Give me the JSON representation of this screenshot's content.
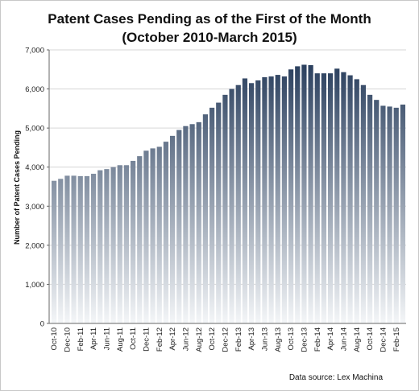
{
  "chart_data": {
    "type": "bar",
    "title_line1": "Patent Cases Pending as of the First of the Month",
    "title_line2": "(October 2010-March 2015)",
    "xlabel": "",
    "ylabel": "Number of Patent Cases Pending",
    "ylim": [
      0,
      7000
    ],
    "yticks": [
      0,
      1000,
      2000,
      3000,
      4000,
      5000,
      6000,
      7000
    ],
    "ytick_labels": [
      "0",
      "1,000",
      "2,000",
      "3,000",
      "4,000",
      "5,000",
      "6,000",
      "7,000"
    ],
    "grid": true,
    "bar_gradient": {
      "top": "#1f3555",
      "bottom": "#f4f6f8"
    },
    "categories": [
      "Oct-10",
      "Nov-10",
      "Dec-10",
      "Jan-11",
      "Feb-11",
      "Mar-11",
      "Apr-11",
      "May-11",
      "Jun-11",
      "Jul-11",
      "Aug-11",
      "Sep-11",
      "Oct-11",
      "Nov-11",
      "Dec-11",
      "Jan-12",
      "Feb-12",
      "Mar-12",
      "Apr-12",
      "May-12",
      "Jun-12",
      "Jul-12",
      "Aug-12",
      "Sep-12",
      "Oct-12",
      "Nov-12",
      "Dec-12",
      "Jan-13",
      "Feb-13",
      "Mar-13",
      "Apr-13",
      "May-13",
      "Jun-13",
      "Jul-13",
      "Aug-13",
      "Sep-13",
      "Oct-13",
      "Nov-13",
      "Dec-13",
      "Jan-14",
      "Feb-14",
      "Mar-14",
      "Apr-14",
      "May-14",
      "Jun-14",
      "Jul-14",
      "Aug-14",
      "Sep-14",
      "Oct-14",
      "Nov-14",
      "Dec-14",
      "Jan-15",
      "Feb-15",
      "Mar-15"
    ],
    "values": [
      3650,
      3700,
      3780,
      3780,
      3770,
      3770,
      3830,
      3920,
      3950,
      4000,
      4050,
      4050,
      4160,
      4280,
      4420,
      4480,
      4520,
      4650,
      4800,
      4950,
      5050,
      5100,
      5150,
      5350,
      5520,
      5650,
      5850,
      6000,
      6100,
      6270,
      6150,
      6220,
      6300,
      6320,
      6360,
      6320,
      6500,
      6580,
      6620,
      6610,
      6400,
      6400,
      6400,
      6520,
      6430,
      6350,
      6250,
      6100,
      5850,
      5720,
      5570,
      5550,
      5520,
      5600
    ],
    "visible_tick_labels": [
      "Oct-10",
      "Dec-10",
      "Feb-11",
      "Apr-11",
      "Jun-11",
      "Aug-11",
      "Oct-11",
      "Dec-11",
      "Feb-12",
      "Apr-12",
      "Jun-12",
      "Aug-12",
      "Oct-12",
      "Dec-12",
      "Feb-13",
      "Apr-13",
      "Jun-13",
      "Aug-13",
      "Oct-13",
      "Dec-13",
      "Feb-14",
      "Apr-14",
      "Jun-14",
      "Aug-14",
      "Oct-14",
      "Dec-14",
      "Feb-15"
    ],
    "source_note": "Data source: Lex Machina"
  }
}
